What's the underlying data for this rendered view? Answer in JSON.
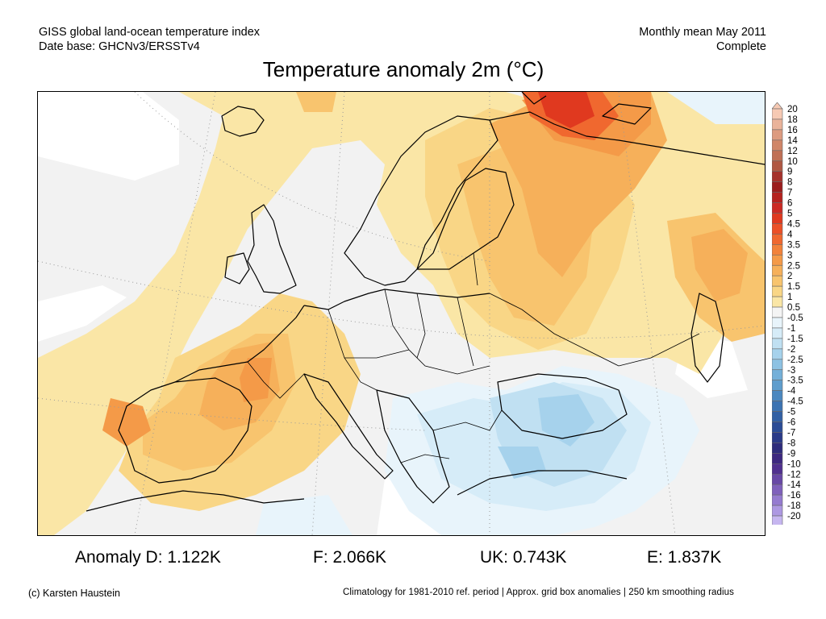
{
  "header": {
    "left_line1": "GISS global land-ocean temperature index",
    "left_line2": "Date base: GHCNv3/ERSSTv4",
    "right_line1": "Monthly mean May 2011",
    "right_line2": "Complete"
  },
  "title": "Temperature anomaly 2m (°C)",
  "colorbar": {
    "labels": [
      "20",
      "18",
      "16",
      "14",
      "12",
      "10",
      "9",
      "8",
      "7",
      "6",
      "5",
      "4.5",
      "4",
      "3.5",
      "3",
      "2.5",
      "2",
      "1.5",
      "1",
      "0.5",
      "-0.5",
      "-1",
      "-1.5",
      "-2",
      "-2.5",
      "-3",
      "-3.5",
      "-4",
      "-4.5",
      "-5",
      "-6",
      "-7",
      "-8",
      "-9",
      "-10",
      "-12",
      "-14",
      "-16",
      "-18",
      "-20"
    ],
    "colors": [
      "#f6c9b3",
      "#eab39a",
      "#dd9b80",
      "#d08668",
      "#c07055",
      "#b05843",
      "#a5322c",
      "#9b1d1d",
      "#b5221f",
      "#cc2a24",
      "#e0391f",
      "#ec5027",
      "#f0682f",
      "#f2823a",
      "#f49a48",
      "#f6b05a",
      "#f8c46e",
      "#f9d686",
      "#fae6a6",
      "#f4f4f4",
      "#e8f4fb",
      "#d6ecf8",
      "#c0e0f2",
      "#a6d2ec",
      "#8dc2e3",
      "#74b0d9",
      "#5e9dcd",
      "#4b88c0",
      "#3c73b2",
      "#3260a4",
      "#2b4c96",
      "#2a3a88",
      "#2e2c7c",
      "#3d2880",
      "#50308f",
      "#6848a6",
      "#7f60bc",
      "#957bd0",
      "#ad98e2",
      "#c6b6f0"
    ]
  },
  "stats": {
    "anomaly_d": "Anomaly D: 1.122K",
    "f": "F: 2.066K",
    "uk": "UK: 0.743K",
    "e": "E: 1.837K"
  },
  "footer": {
    "left": "(c) Karsten Haustein",
    "right": "Climatology for 1981-2010 ref. period | Approx. grid box anomalies | 250 km smoothing radius"
  },
  "map": {
    "region": "Europe",
    "month": "May 2011",
    "anomaly_colors": {
      "no_data": "#ffffff",
      "near_zero": "#f2f2f2",
      "warm_1": "#fae6a6",
      "warm_1_5": "#f9d686",
      "warm_2": "#f8c46e",
      "warm_2_5": "#f6b05a",
      "warm_3": "#f49a48",
      "warm_3_5": "#f2823a",
      "warm_4": "#f0682f",
      "warm_5": "#e0391f",
      "warm_6": "#cc2a24",
      "cool_0_5": "#e8f4fb",
      "cool_1": "#d6ecf8",
      "cool_1_5": "#c0e0f2",
      "cool_2": "#a6d2ec"
    },
    "coastline_color": "#000000",
    "graticule_color": "#9a9a9a"
  }
}
